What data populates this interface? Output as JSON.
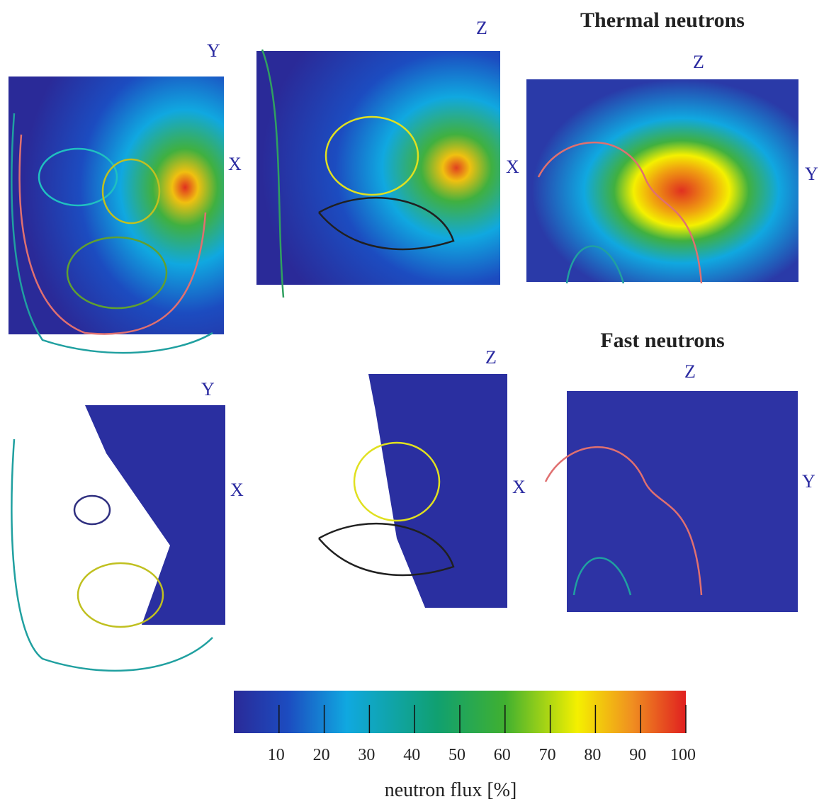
{
  "titles": {
    "thermal": "Thermal neutrons",
    "fast": "Fast neutrons"
  },
  "panels": [
    {
      "labels": [
        "Y",
        "X"
      ]
    },
    {
      "labels": [
        "Z",
        "X"
      ]
    },
    {
      "labels": [
        "Z",
        "Y"
      ]
    },
    {
      "labels": [
        "Y",
        "X"
      ]
    },
    {
      "labels": [
        "Z",
        "X"
      ]
    },
    {
      "labels": [
        "Z",
        "Y"
      ]
    }
  ],
  "colorbar": {
    "range": [
      0,
      100
    ],
    "ticks": [
      10,
      20,
      30,
      40,
      50,
      60,
      70,
      80,
      90,
      100
    ],
    "label": "neutron flux [%]"
  }
}
